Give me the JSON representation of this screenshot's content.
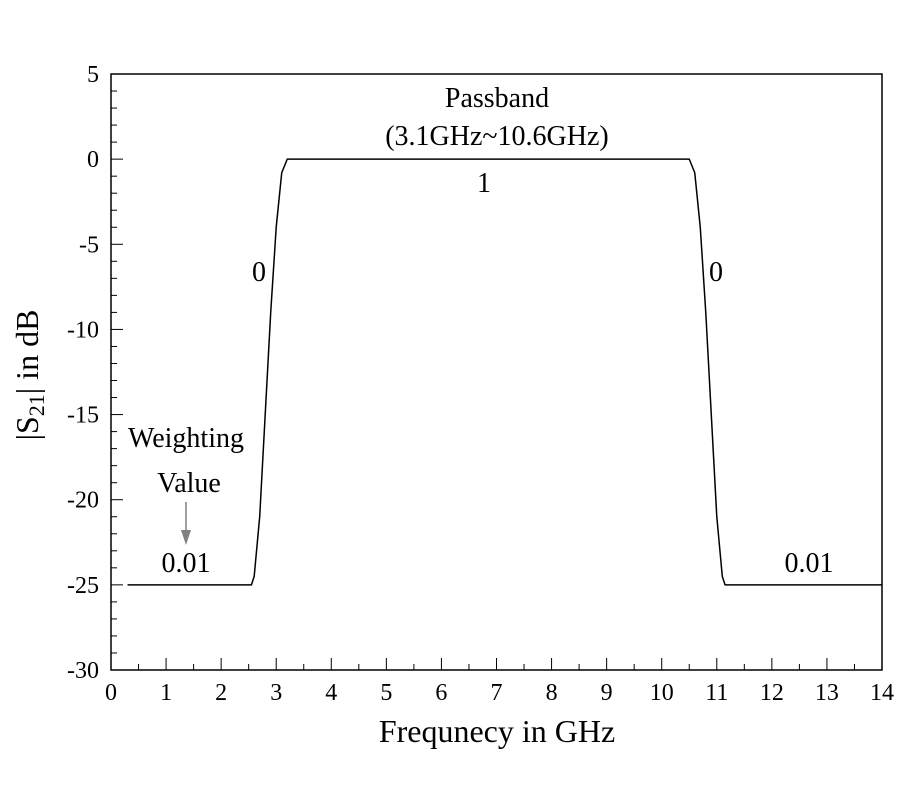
{
  "chart_data": {
    "type": "line",
    "xlabel": "Frequnecy in GHz",
    "ylabel_prefix": "|S",
    "ylabel_subscript": "21",
    "ylabel_suffix": "| in dB",
    "xlim": [
      0,
      14
    ],
    "ylim": [
      -30,
      5
    ],
    "xticks": [
      0,
      1,
      2,
      3,
      4,
      5,
      6,
      7,
      8,
      9,
      10,
      11,
      12,
      13,
      14
    ],
    "yticks": [
      5,
      0,
      -5,
      -10,
      -15,
      -20,
      -25,
      -30
    ],
    "grid": false,
    "series": [
      {
        "x": [
          0.3,
          2.55,
          2.6,
          2.7,
          2.8,
          2.9,
          3.0,
          3.1,
          3.2,
          10.5,
          10.6,
          10.7,
          10.8,
          10.9,
          11.0,
          11.1,
          11.15,
          14.0
        ],
        "y": [
          -25,
          -25,
          -24.5,
          -21,
          -15,
          -9,
          -4,
          -0.8,
          0,
          0,
          -0.8,
          -4,
          -9,
          -15,
          -21,
          -24.5,
          -25,
          -25
        ]
      }
    ],
    "annotations": {
      "passband_line1": "Passband",
      "passband_line2": "(3.1GHz~10.6GHz)",
      "weight_passband": "1",
      "weight_left_transition": "0",
      "weight_right_transition": "0",
      "weight_left_stopband": "0.01",
      "weight_right_stopband": "0.01",
      "weighting_line1": "Weighting",
      "weighting_line2": "Value"
    }
  }
}
